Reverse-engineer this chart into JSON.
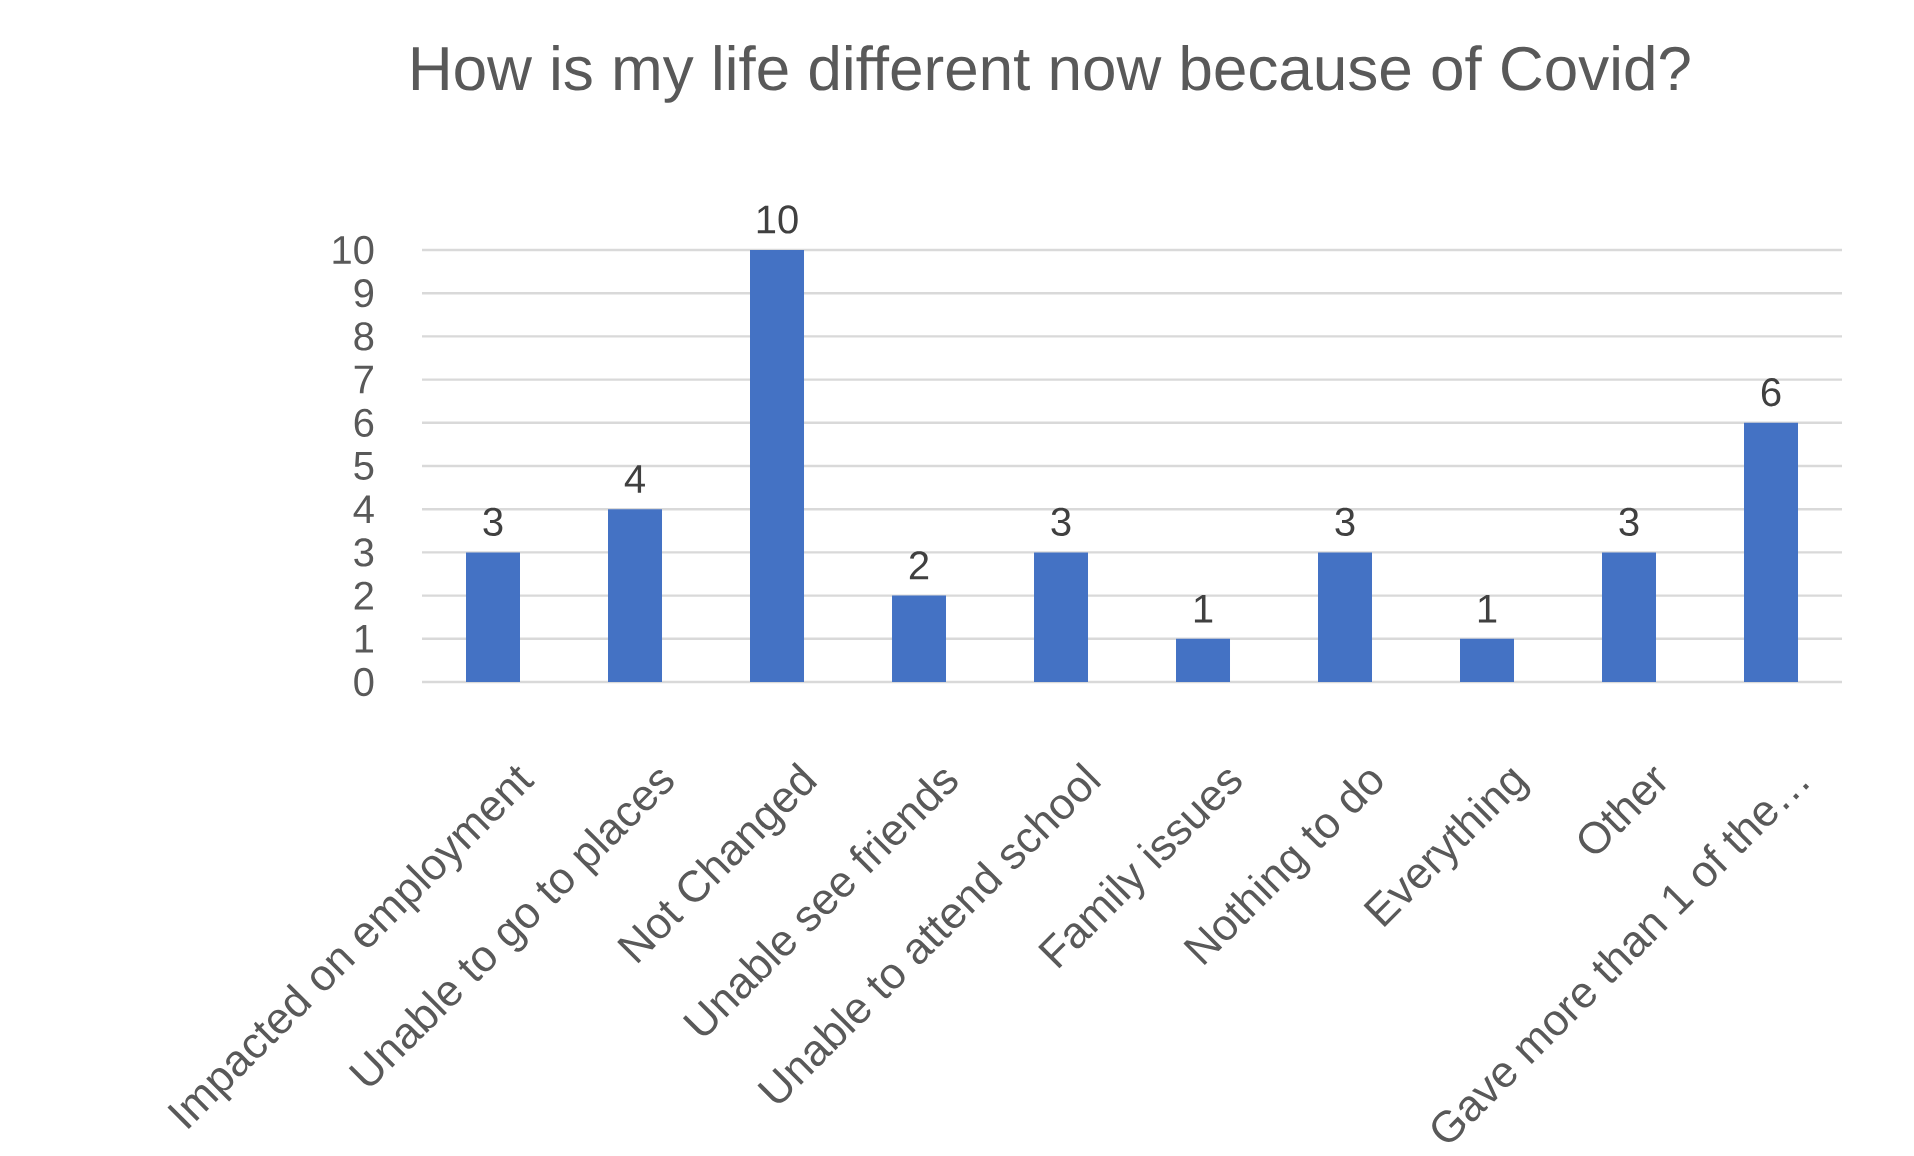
{
  "chart_data": {
    "type": "bar",
    "title": "How is my life different now because of Covid?",
    "categories": [
      "Impacted on employment",
      "Unable to go to places",
      "Not Changed",
      "Unable see friends",
      "Unable to attend school",
      "Family issues",
      "Nothing to do",
      "Everything",
      "Other",
      "Gave more than 1 of the…"
    ],
    "values": [
      3,
      4,
      10,
      2,
      3,
      1,
      3,
      1,
      3,
      6
    ],
    "color": "#4472c4",
    "ylim": [
      0,
      10
    ],
    "yticks": [
      0,
      1,
      2,
      3,
      4,
      5,
      6,
      7,
      8,
      9,
      10
    ],
    "grid": "y",
    "data_labels": true
  }
}
